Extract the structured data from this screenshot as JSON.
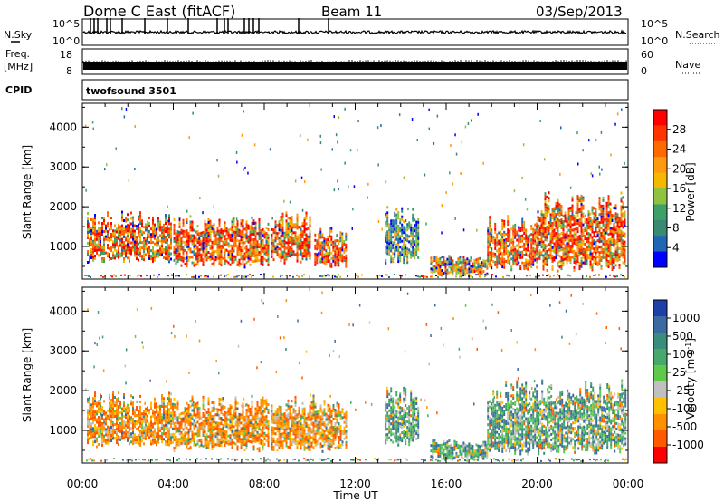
{
  "header": {
    "station": "Dome C East (fitACF)",
    "beam": "Beam 11",
    "date": "03/Sep/2013"
  },
  "strips": {
    "nsky": {
      "label": "N.Sky",
      "top": "10^5",
      "bottom": "10^0"
    },
    "nsearch": {
      "label": "N.Search"
    },
    "freq": {
      "label": "Freq.",
      "unit": "[MHz]",
      "top": "18",
      "bottom": "8"
    },
    "nave": {
      "label": "Nave",
      "top": "60",
      "bottom": "0"
    },
    "cpid": {
      "label": "CPID",
      "value": "twofsound 3501"
    }
  },
  "panels": {
    "ylabel": "Slant Range [km]",
    "yticks": [
      "4000",
      "3000",
      "2000",
      "1000"
    ]
  },
  "xaxis": {
    "label": "Time UT",
    "ticks": [
      "00:00",
      "04:00",
      "08:00",
      "12:00",
      "16:00",
      "20:00",
      "00:00"
    ]
  },
  "power_scale": {
    "label": "Power [dB]",
    "ticks": [
      "28",
      "24",
      "20",
      "16",
      "12",
      "8",
      "4"
    ],
    "colors": [
      "#ff0000",
      "#ff3300",
      "#ff6a00",
      "#ff9a10",
      "#f4b800",
      "#8fc23f",
      "#3e9f69",
      "#3a8a73",
      "#1f66b3",
      "#0000ff"
    ]
  },
  "velocity_scale": {
    "label": "Velocity [m s-1]",
    "ticks": [
      "1000",
      "500",
      "100",
      "25",
      "-25",
      "-100",
      "-500",
      "-1000"
    ],
    "colors": [
      "#1c3fa8",
      "#3a6aa0",
      "#3a8c7d",
      "#46a86a",
      "#5fc94a",
      "#c0c0c0",
      "#ffc000",
      "#ff9000",
      "#ff5a00",
      "#ff0000"
    ]
  },
  "chart_data": [
    {
      "type": "heatmap",
      "name": "Power",
      "x_range_hours": [
        0,
        24
      ],
      "ylim": [
        180,
        4600
      ],
      "regions": [
        {
          "t": [
            0.2,
            3.9
          ],
          "r": [
            600,
            1900
          ],
          "level": "high"
        },
        {
          "t": [
            4.0,
            8.2
          ],
          "r": [
            500,
            1800
          ],
          "level": "high"
        },
        {
          "t": [
            8.3,
            10.0
          ],
          "r": [
            600,
            1900
          ],
          "level": "high"
        },
        {
          "t": [
            10.2,
            11.6
          ],
          "r": [
            500,
            1500
          ],
          "level": "high"
        },
        {
          "t": [
            13.3,
            14.8
          ],
          "r": [
            600,
            2100
          ],
          "level": "low"
        },
        {
          "t": [
            15.3,
            17.8
          ],
          "r": [
            300,
            800
          ],
          "level": "mid"
        },
        {
          "t": [
            17.8,
            20.0
          ],
          "r": [
            400,
            1800
          ],
          "level": "high"
        },
        {
          "t": [
            20.0,
            23.9
          ],
          "r": [
            400,
            2400
          ],
          "level": "high"
        }
      ]
    },
    {
      "type": "heatmap",
      "name": "Velocity",
      "x_range_hours": [
        0,
        24
      ],
      "ylim": [
        180,
        4600
      ],
      "regions": [
        {
          "t": [
            0.2,
            4.0
          ],
          "r": [
            600,
            2000
          ],
          "dir": "away"
        },
        {
          "t": [
            4.0,
            8.2
          ],
          "r": [
            500,
            1900
          ],
          "dir": "away"
        },
        {
          "t": [
            8.3,
            11.6
          ],
          "r": [
            500,
            1900
          ],
          "dir": "away"
        },
        {
          "t": [
            13.3,
            14.8
          ],
          "r": [
            600,
            2100
          ],
          "dir": "toward"
        },
        {
          "t": [
            15.3,
            17.8
          ],
          "r": [
            300,
            800
          ],
          "dir": "toward"
        },
        {
          "t": [
            17.8,
            23.9
          ],
          "r": [
            400,
            2300
          ],
          "dir": "toward"
        }
      ]
    }
  ]
}
